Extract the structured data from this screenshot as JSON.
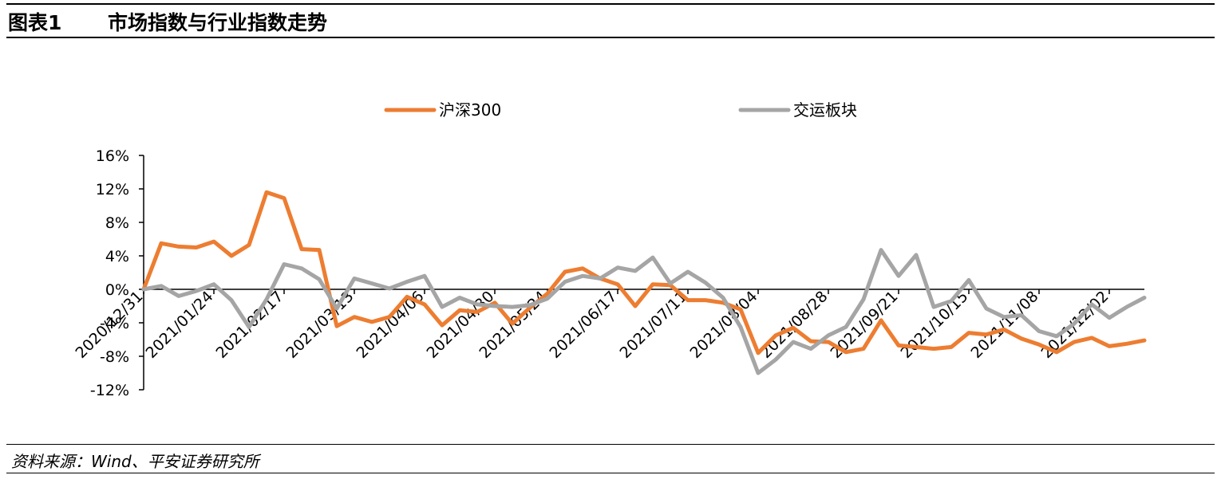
{
  "header": {
    "label": "图表1",
    "title": "市场指数与行业指数走势"
  },
  "source": "资料来源：Wind、平安证券研究所",
  "chart_data": {
    "type": "line",
    "title": "",
    "xlabel": "",
    "ylabel": "",
    "ylim": [
      -12,
      16
    ],
    "yticks": [
      "16%",
      "12%",
      "8%",
      "4%",
      "0%",
      "-4%",
      "-8%",
      "-12%"
    ],
    "x_tick_labels": [
      "2020/12/31",
      "2021/01/24",
      "2021/02/17",
      "2021/03/13",
      "2021/04/06",
      "2021/04/30",
      "2021/05/24",
      "2021/06/17",
      "2021/07/11",
      "2021/08/04",
      "2021/08/28",
      "2021/09/21",
      "2021/10/15",
      "2021/11/08",
      "2021/12/02"
    ],
    "legend_position": "top",
    "series": [
      {
        "name": "沪深300",
        "color": "#ED7D31",
        "values": [
          0,
          5.5,
          5.1,
          5.0,
          5.7,
          4.0,
          5.3,
          11.6,
          10.9,
          4.8,
          4.7,
          -4.4,
          -3.3,
          -3.9,
          -3.3,
          -0.9,
          -1.8,
          -4.3,
          -2.5,
          -2.7,
          -1.6,
          -4.1,
          -2.2,
          -0.5,
          2.1,
          2.5,
          1.3,
          0.6,
          -2.0,
          0.6,
          0.5,
          -1.3,
          -1.3,
          -1.6,
          -2.4,
          -7.6,
          -5.5,
          -4.6,
          -6.2,
          -6.3,
          -7.5,
          -7.1,
          -3.7,
          -6.7,
          -6.9,
          -7.1,
          -6.9,
          -5.2,
          -5.4,
          -4.8,
          -5.9,
          -6.6,
          -7.5,
          -6.3,
          -5.8,
          -6.8,
          -6.5,
          -6.1
        ],
        "line_width": 5
      },
      {
        "name": "交运板块",
        "color": "#A5A5A5",
        "values": [
          0,
          0.4,
          -0.8,
          -0.2,
          0.6,
          -1.3,
          -4.5,
          -1.2,
          3.0,
          2.5,
          1.2,
          -2.3,
          1.3,
          0.7,
          0.1,
          0.9,
          1.6,
          -2.1,
          -1.0,
          -1.8,
          -2.0,
          -2.1,
          -1.9,
          -1.1,
          0.9,
          1.6,
          1.3,
          2.6,
          2.2,
          3.8,
          0.7,
          2.1,
          0.8,
          -1.0,
          -4.5,
          -10.0,
          -8.4,
          -6.3,
          -7.1,
          -5.5,
          -4.5,
          -1.2,
          4.7,
          1.6,
          4.1,
          -2.1,
          -1.4,
          1.1,
          -2.3,
          -3.3,
          -3.1,
          -5.0,
          -5.6,
          -4.1,
          -1.8,
          -3.4,
          -2.1,
          -1.0
        ],
        "line_width": 5
      }
    ]
  }
}
